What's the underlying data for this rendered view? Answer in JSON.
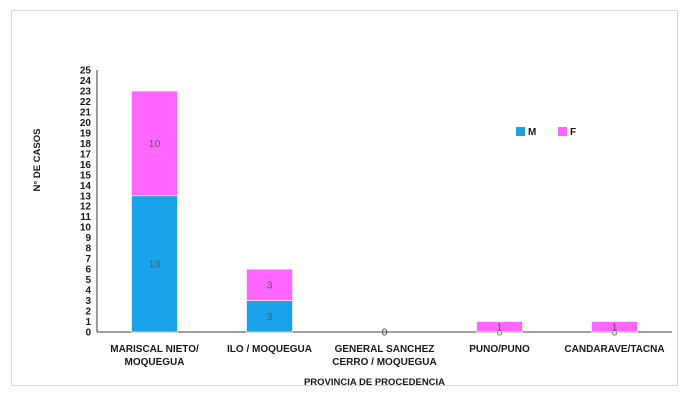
{
  "chart_data": {
    "type": "bar",
    "stacked": true,
    "categories": [
      [
        "MARISCAL NIETO/",
        "MOQUEGUA"
      ],
      [
        "ILO / MOQUEGUA"
      ],
      [
        "GENERAL SANCHEZ",
        "CERRO / MOQUEGUA"
      ],
      [
        "PUNO/PUNO"
      ],
      [
        "CANDARAVE/TACNA"
      ]
    ],
    "series": [
      {
        "name": "M",
        "color": "#1aa3e8",
        "values": [
          13,
          3,
          0,
          0,
          0
        ]
      },
      {
        "name": "F",
        "color": "#ff66ff",
        "values": [
          10,
          3,
          0,
          1,
          1
        ]
      }
    ],
    "xlabel": "PROVINCIA DE PROCEDENCIA",
    "ylabel": "N° DE CASOS",
    "ylim": [
      0,
      25
    ],
    "ytick_step": 1,
    "grid": false,
    "legend_position": "right, upper-middle inside plot"
  }
}
